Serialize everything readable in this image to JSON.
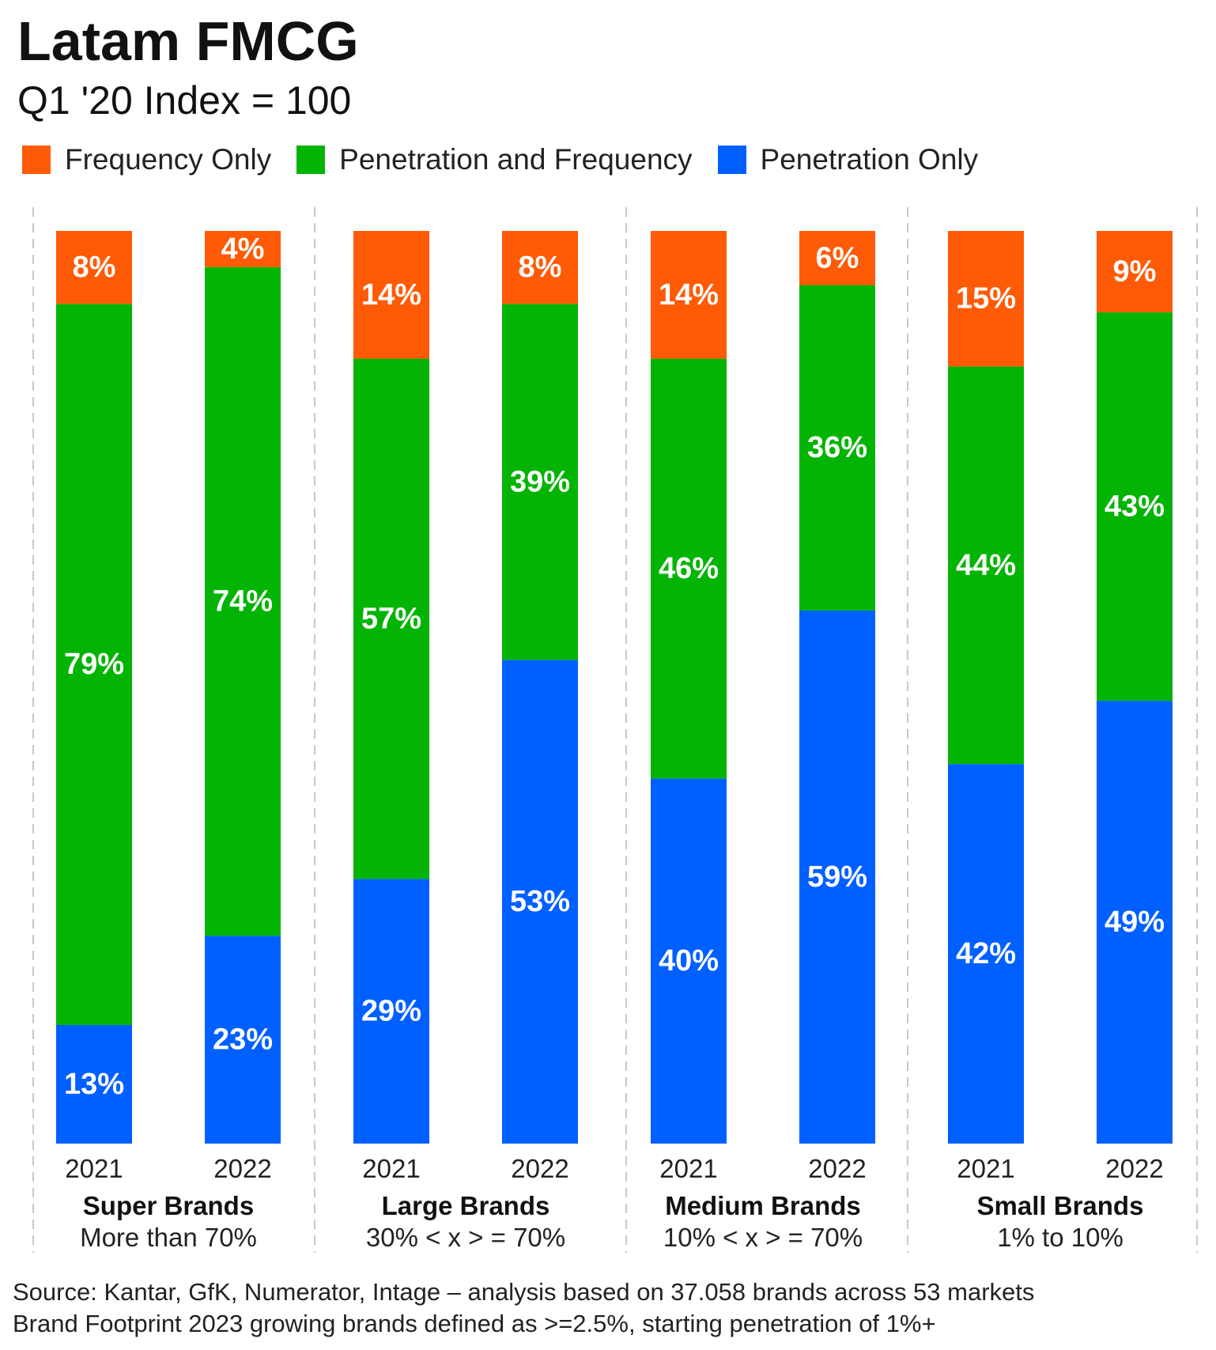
{
  "title": "Latam FMCG",
  "subtitle": "Q1 '20 Index = 100",
  "legend": [
    {
      "label": "Frequency Only",
      "color": "#ff5a05"
    },
    {
      "label": "Penetration and Frequency",
      "color": "#04b404"
    },
    {
      "label": "Penetration Only",
      "color": "#0060ff"
    }
  ],
  "chart_data": {
    "type": "bar",
    "stacked": true,
    "normalized_percent": true,
    "groups": [
      {
        "name": "Super Brands",
        "range": "More than 70%",
        "bars": [
          {
            "year": "2021",
            "frequency_only": 8,
            "penetration_and_frequency": 79,
            "penetration_only": 13
          },
          {
            "year": "2022",
            "frequency_only": 4,
            "penetration_and_frequency": 74,
            "penetration_only": 23
          }
        ]
      },
      {
        "name": "Large Brands",
        "range": "30% < x > = 70%",
        "bars": [
          {
            "year": "2021",
            "frequency_only": 14,
            "penetration_and_frequency": 57,
            "penetration_only": 29
          },
          {
            "year": "2022",
            "frequency_only": 8,
            "penetration_and_frequency": 39,
            "penetration_only": 53
          }
        ]
      },
      {
        "name": "Medium Brands",
        "range": "10% < x > = 70%",
        "bars": [
          {
            "year": "2021",
            "frequency_only": 14,
            "penetration_and_frequency": 46,
            "penetration_only": 40
          },
          {
            "year": "2022",
            "frequency_only": 6,
            "penetration_and_frequency": 36,
            "penetration_only": 59
          }
        ]
      },
      {
        "name": "Small Brands",
        "range": "1% to 10%",
        "bars": [
          {
            "year": "2021",
            "frequency_only": 15,
            "penetration_and_frequency": 44,
            "penetration_only": 42
          },
          {
            "year": "2022",
            "frequency_only": 9,
            "penetration_and_frequency": 43,
            "penetration_only": 49
          }
        ]
      }
    ],
    "series": [
      {
        "key": "penetration_only",
        "name": "Penetration Only",
        "color": "#0060ff"
      },
      {
        "key": "penetration_and_frequency",
        "name": "Penetration and Frequency",
        "color": "#04b404"
      },
      {
        "key": "frequency_only",
        "name": "Frequency Only",
        "color": "#ff5a05"
      }
    ],
    "value_suffix": "%",
    "grid": false,
    "group_separators": "dashed vertical lines",
    "legend_position": "top-left"
  },
  "source": {
    "line1": "Source: Kantar, GfK, Numerator, Intage – analysis based on 37.058  brands across 53 markets",
    "line2": "Brand Footprint 2023 growing brands defined as >=2.5%, starting penetration of 1%+"
  }
}
